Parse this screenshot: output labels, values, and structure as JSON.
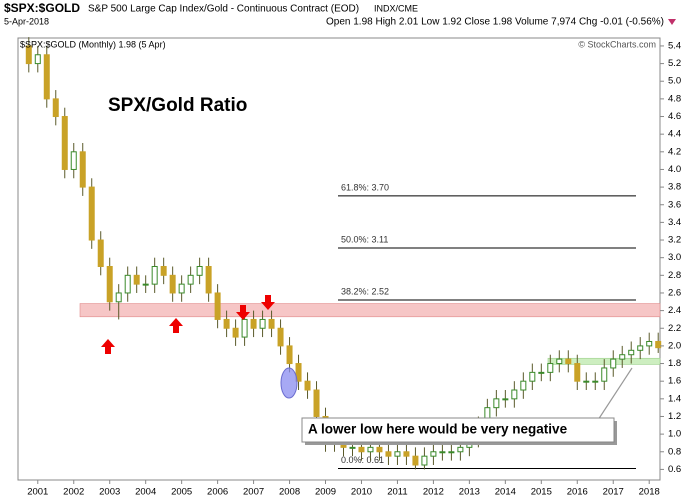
{
  "chart_data": {
    "type": "candlestick",
    "symbol": "$SPX:$GOLD",
    "description": "S&P 500 Large Cap Index/Gold - Continuous Contract (EOD)",
    "exchange": "INDX/CME",
    "date": "5-Apr-2018",
    "quote": "Open 1.98 High 2.01 Low 1.92 Close 1.98 Volume 7,974 Chg -0.01 (-0.56%)",
    "credit": "© StockCharts.com",
    "legend": "$SPX:$GOLD (Monthly) 1.98 (5 Apr)",
    "title": "SPX/Gold Ratio",
    "annotation": "A lower low here would be very negative",
    "color": "#c9a227",
    "x": [
      2000.75,
      2001,
      2001.25,
      2001.5,
      2001.75,
      2002,
      2002.25,
      2002.5,
      2002.75,
      2003,
      2003.25,
      2003.5,
      2003.75,
      2004,
      2004.25,
      2004.5,
      2004.75,
      2005,
      2005.25,
      2005.5,
      2005.75,
      2006,
      2006.25,
      2006.5,
      2006.75,
      2007,
      2007.25,
      2007.5,
      2007.75,
      2008,
      2008.25,
      2008.5,
      2008.75,
      2009,
      2009.25,
      2009.5,
      2009.75,
      2010,
      2010.25,
      2010.5,
      2010.75,
      2011,
      2011.25,
      2011.5,
      2011.75,
      2012,
      2012.25,
      2012.5,
      2012.75,
      2013,
      2013.25,
      2013.5,
      2013.75,
      2014,
      2014.25,
      2014.5,
      2014.75,
      2015,
      2015.25,
      2015.5,
      2015.75,
      2016,
      2016.25,
      2016.5,
      2016.75,
      2017,
      2017.25,
      2017.5,
      2017.75,
      2018,
      2018.25
    ],
    "open": [
      5.4,
      5.2,
      5.3,
      4.8,
      4.6,
      4.0,
      4.2,
      3.8,
      3.2,
      2.9,
      2.5,
      2.6,
      2.8,
      2.7,
      2.7,
      2.9,
      2.8,
      2.6,
      2.7,
      2.8,
      2.9,
      2.6,
      2.3,
      2.2,
      2.1,
      2.3,
      2.2,
      2.3,
      2.2,
      2.0,
      1.8,
      1.6,
      1.5,
      1.2,
      0.9,
      1.0,
      0.85,
      0.85,
      0.8,
      0.85,
      0.8,
      0.75,
      0.8,
      0.75,
      0.65,
      0.75,
      0.8,
      0.8,
      0.8,
      0.85,
      0.95,
      1.1,
      1.3,
      1.4,
      1.4,
      1.5,
      1.6,
      1.7,
      1.7,
      1.8,
      1.85,
      1.8,
      1.6,
      1.6,
      1.6,
      1.75,
      1.85,
      1.9,
      1.95,
      2.0,
      2.05
    ],
    "high": [
      5.5,
      5.4,
      5.4,
      4.9,
      4.7,
      4.3,
      4.3,
      3.9,
      3.3,
      3.0,
      2.7,
      2.9,
      2.9,
      2.8,
      3.0,
      3.0,
      2.9,
      2.8,
      2.9,
      3.0,
      3.0,
      2.7,
      2.4,
      2.3,
      2.4,
      2.4,
      2.4,
      2.4,
      2.3,
      2.1,
      1.9,
      1.7,
      1.6,
      1.3,
      1.1,
      1.1,
      0.95,
      0.95,
      0.95,
      0.95,
      0.9,
      0.9,
      0.9,
      0.85,
      0.85,
      0.9,
      0.9,
      0.9,
      0.95,
      1.05,
      1.2,
      1.4,
      1.5,
      1.5,
      1.6,
      1.7,
      1.8,
      1.8,
      1.9,
      1.95,
      1.95,
      1.9,
      1.7,
      1.7,
      1.85,
      1.95,
      2.0,
      2.05,
      2.1,
      2.15,
      2.15
    ],
    "low": [
      5.1,
      5.1,
      4.7,
      4.5,
      3.9,
      3.9,
      3.7,
      3.1,
      2.8,
      2.4,
      2.3,
      2.5,
      2.6,
      2.6,
      2.6,
      2.7,
      2.5,
      2.5,
      2.6,
      2.7,
      2.5,
      2.2,
      2.1,
      2.0,
      2.0,
      2.1,
      2.1,
      2.1,
      1.9,
      1.7,
      1.5,
      1.4,
      1.1,
      0.8,
      0.8,
      0.75,
      0.75,
      0.7,
      0.7,
      0.7,
      0.65,
      0.65,
      0.65,
      0.6,
      0.6,
      0.65,
      0.7,
      0.7,
      0.7,
      0.75,
      0.85,
      1.0,
      1.2,
      1.3,
      1.3,
      1.4,
      1.5,
      1.6,
      1.6,
      1.7,
      1.7,
      1.5,
      1.5,
      1.5,
      1.5,
      1.65,
      1.75,
      1.8,
      1.85,
      1.9,
      1.92
    ],
    "close": [
      5.2,
      5.3,
      4.8,
      4.6,
      4.0,
      4.2,
      3.8,
      3.2,
      2.9,
      2.5,
      2.6,
      2.8,
      2.7,
      2.7,
      2.9,
      2.8,
      2.6,
      2.7,
      2.8,
      2.9,
      2.6,
      2.3,
      2.2,
      2.1,
      2.3,
      2.2,
      2.3,
      2.2,
      2.0,
      1.8,
      1.6,
      1.5,
      1.2,
      0.9,
      1.0,
      0.85,
      0.85,
      0.8,
      0.85,
      0.8,
      0.75,
      0.8,
      0.75,
      0.65,
      0.75,
      0.8,
      0.8,
      0.8,
      0.85,
      0.95,
      1.1,
      1.3,
      1.4,
      1.4,
      1.5,
      1.6,
      1.7,
      1.7,
      1.8,
      1.85,
      1.8,
      1.6,
      1.6,
      1.6,
      1.75,
      1.85,
      1.9,
      1.95,
      2.0,
      2.05,
      1.98
    ],
    "xlim": [
      2000.45,
      2018.3
    ],
    "xticks": [
      2001,
      2002,
      2003,
      2004,
      2005,
      2006,
      2007,
      2008,
      2009,
      2010,
      2011,
      2012,
      2013,
      2014,
      2015,
      2016,
      2017,
      2018
    ],
    "ylim": [
      0.48,
      5.49
    ],
    "yticks": [
      0.6,
      0.8,
      {
        "value": 1,
        "label": "1.0"
      },
      1.2,
      1.4,
      1.6,
      1.8,
      {
        "value": 2,
        "label": "2.0"
      },
      2.2,
      2.4,
      2.6,
      2.8,
      {
        "value": 3,
        "label": "3.0"
      },
      3.2,
      3.4,
      3.6,
      3.8,
      {
        "value": 4,
        "label": "4.0"
      },
      4.2,
      4.4,
      4.6,
      4.8,
      {
        "value": 5,
        "label": "5.0"
      },
      5.2,
      5.4
    ],
    "fib_levels": [
      {
        "label": "61.8%: 3.70",
        "value": 3.7
      },
      {
        "label": "50.0%: 3.11",
        "value": 3.11
      },
      {
        "label": "38.2%: 2.52",
        "value": 2.52
      },
      {
        "label": "0.0%: 0.61",
        "value": 0.61
      }
    ],
    "zones": [
      {
        "from": 2.33,
        "to": 2.48,
        "color": "#f6c6c6"
      },
      {
        "from": 1.79,
        "to": 1.86,
        "color": "#cdeec0"
      }
    ]
  }
}
